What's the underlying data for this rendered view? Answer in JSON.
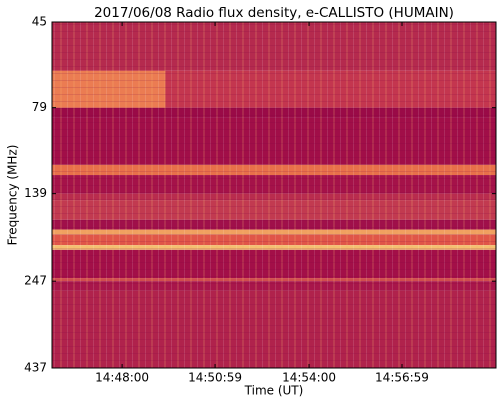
{
  "chart_data": {
    "type": "spectrogram",
    "title": "2017/06/08  Radio flux density, e-CALLISTO (HUMAIN)",
    "xlabel": "Time (UT)",
    "ylabel": "Frequency (MHz)",
    "xlim": [
      "14:45:45",
      "15:00:00"
    ],
    "xticks": [
      "14:48:00",
      "14:50:59",
      "14:54:00",
      "14:56:59"
    ],
    "ylim": [
      437,
      45
    ],
    "yticks": [
      45,
      79,
      139,
      247,
      437
    ],
    "log_y": true,
    "bands": [
      {
        "from": 45,
        "to": 62,
        "color": "#b52a4e"
      },
      {
        "from": 62,
        "to": 79,
        "color": "#c4364f"
      },
      {
        "from": 79,
        "to": 84.5,
        "color": "#9a0a47"
      },
      {
        "from": 84.5,
        "to": 115,
        "color": "#a10e48"
      },
      {
        "from": 115,
        "to": 123,
        "color": "#e8704a"
      },
      {
        "from": 123,
        "to": 139,
        "color": "#a51249"
      },
      {
        "from": 139,
        "to": 145,
        "color": "#b92c4e"
      },
      {
        "from": 145,
        "to": 165,
        "color": "#c23a50"
      },
      {
        "from": 165,
        "to": 176,
        "color": "#a0104a"
      },
      {
        "from": 176,
        "to": 182,
        "color": "#f0a060"
      },
      {
        "from": 182,
        "to": 195,
        "color": "#e05548"
      },
      {
        "from": 195,
        "to": 201,
        "color": "#f5c070"
      },
      {
        "from": 201,
        "to": 242,
        "color": "#a30f48"
      },
      {
        "from": 242,
        "to": 247,
        "color": "#d04e4e"
      },
      {
        "from": 247,
        "to": 262,
        "color": "#a8164a"
      },
      {
        "from": 262,
        "to": 437,
        "color": "#b0224c"
      }
    ],
    "patches": [
      {
        "from": 62,
        "to": 79,
        "start": "14:45:45",
        "end": "14:49:23",
        "color": "#eb7c52"
      }
    ]
  }
}
